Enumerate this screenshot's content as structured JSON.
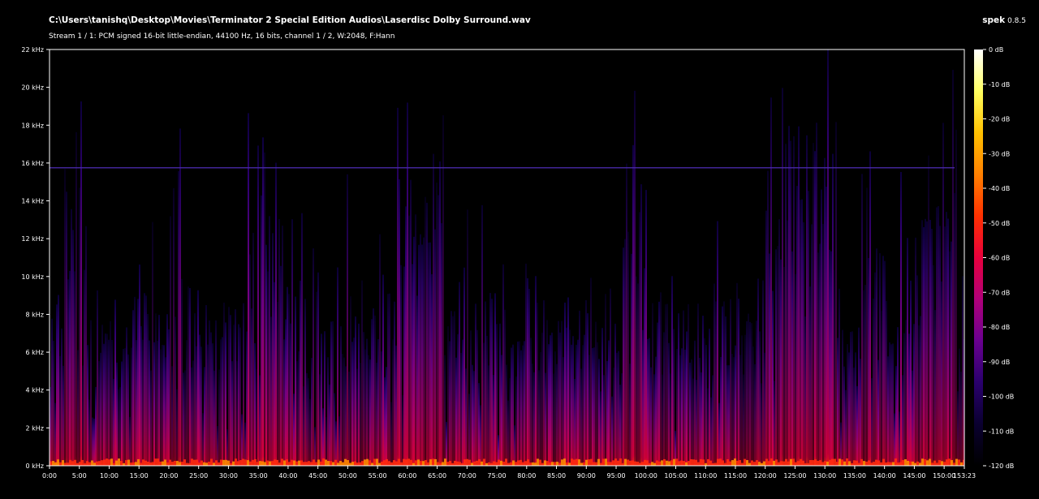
{
  "header": {
    "file_path": "C:\\Users\\tanishq\\Desktop\\Movies\\Terminator 2 Special Edition Audios\\Laserdisc Dolby Surround.wav",
    "stream_info": "Stream 1 / 1: PCM signed 16-bit little-endian, 44100 Hz, 16 bits, channel 1 / 2, W:2048, F:Hann",
    "app_name": "spek",
    "app_version": "0.8.5"
  },
  "chart_data": {
    "type": "heatmap",
    "title": "",
    "xlabel": "",
    "ylabel": "",
    "x_ticks": [
      "0:00",
      "5:00",
      "10:00",
      "15:00",
      "20:00",
      "25:00",
      "30:00",
      "35:00",
      "40:00",
      "45:00",
      "50:00",
      "55:00",
      "60:00",
      "65:00",
      "70:00",
      "75:00",
      "80:00",
      "85:00",
      "90:00",
      "95:00",
      "100:00",
      "105:00",
      "110:00",
      "115:00",
      "120:00",
      "125:00",
      "130:00",
      "135:00",
      "140:00",
      "145:00",
      "150:00",
      "153:23"
    ],
    "x_tick_minutes": [
      0,
      5,
      10,
      15,
      20,
      25,
      30,
      35,
      40,
      45,
      50,
      55,
      60,
      65,
      70,
      75,
      80,
      85,
      90,
      95,
      100,
      105,
      110,
      115,
      120,
      125,
      130,
      135,
      140,
      145,
      150,
      153.383
    ],
    "xlim_minutes": [
      0,
      153.383
    ],
    "y_ticks": [
      "0 kHz",
      "2 kHz",
      "4 kHz",
      "6 kHz",
      "8 kHz",
      "10 kHz",
      "12 kHz",
      "14 kHz",
      "16 kHz",
      "18 kHz",
      "20 kHz",
      "22 kHz"
    ],
    "ylim_khz": [
      0,
      22
    ],
    "colorbar_ticks": [
      "0 dB",
      "-10 dB",
      "-20 dB",
      "-30 dB",
      "-40 dB",
      "-50 dB",
      "-60 dB",
      "-70 dB",
      "-80 dB",
      "-90 dB",
      "-100 dB",
      "-110 dB",
      "-120 dB"
    ],
    "colorbar_range_db": [
      -120,
      0
    ],
    "colormap": [
      "#000000",
      "#0a0030",
      "#2a006e",
      "#6a0090",
      "#b0007a",
      "#e8003c",
      "#ff3000",
      "#ff8000",
      "#ffc000",
      "#ffff60",
      "#ffffff"
    ],
    "cutoff_line_khz": 15.75,
    "cutoff_line_color": "#4a2aa8"
  }
}
